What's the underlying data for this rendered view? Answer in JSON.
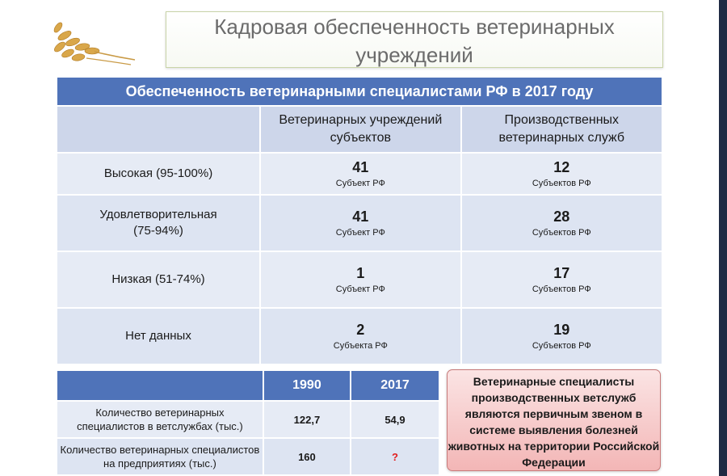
{
  "title": {
    "line1": "Кадровая обеспеченность ветеринарных",
    "line2": "учреждений"
  },
  "main_table": {
    "header": "Обеспеченность ветеринарными специалистами РФ в 2017 году",
    "col1": "Ветеринарных учреждений субъектов",
    "col2": "Производственных ветеринарных служб",
    "rows": [
      {
        "label": "Высокая (95-100%)",
        "v1": "41",
        "u1": "Субъект РФ",
        "v2": "12",
        "u2": "Субъектов РФ"
      },
      {
        "label": "Удовлетворительная (75-94%)",
        "v1": "41",
        "u1": "Субъект РФ",
        "v2": "28",
        "u2": "Субъектов РФ"
      },
      {
        "label": "Низкая (51-74%)",
        "v1": "1",
        "u1": "Субъект РФ",
        "v2": "17",
        "u2": "Субъектов РФ"
      },
      {
        "label": "Нет данных",
        "v1": "2",
        "u1": "Субъекта РФ",
        "v2": "19",
        "u2": "Субъектов РФ"
      }
    ]
  },
  "small_table": {
    "year1": "1990",
    "year2": "2017",
    "rows": [
      {
        "label": "Количество ветеринарных специалистов в ветслужбах (тыс.)",
        "v1990": "122,7",
        "v2017": "54,9"
      },
      {
        "label": "Количество ветеринарных специалистов на предприятиях (тыс.)",
        "v1990": "160",
        "v2017": "?"
      }
    ]
  },
  "callout": "Ветеринарные специалисты производственных ветслужб являются первичным звеном в системе выявления болезней животных на территории Российской Федерации",
  "colors": {
    "header_blue": "#4f73b9",
    "cell_light": "#e6ebf5",
    "callout_red": "#f3b6b6",
    "question": "#e21e1e"
  }
}
